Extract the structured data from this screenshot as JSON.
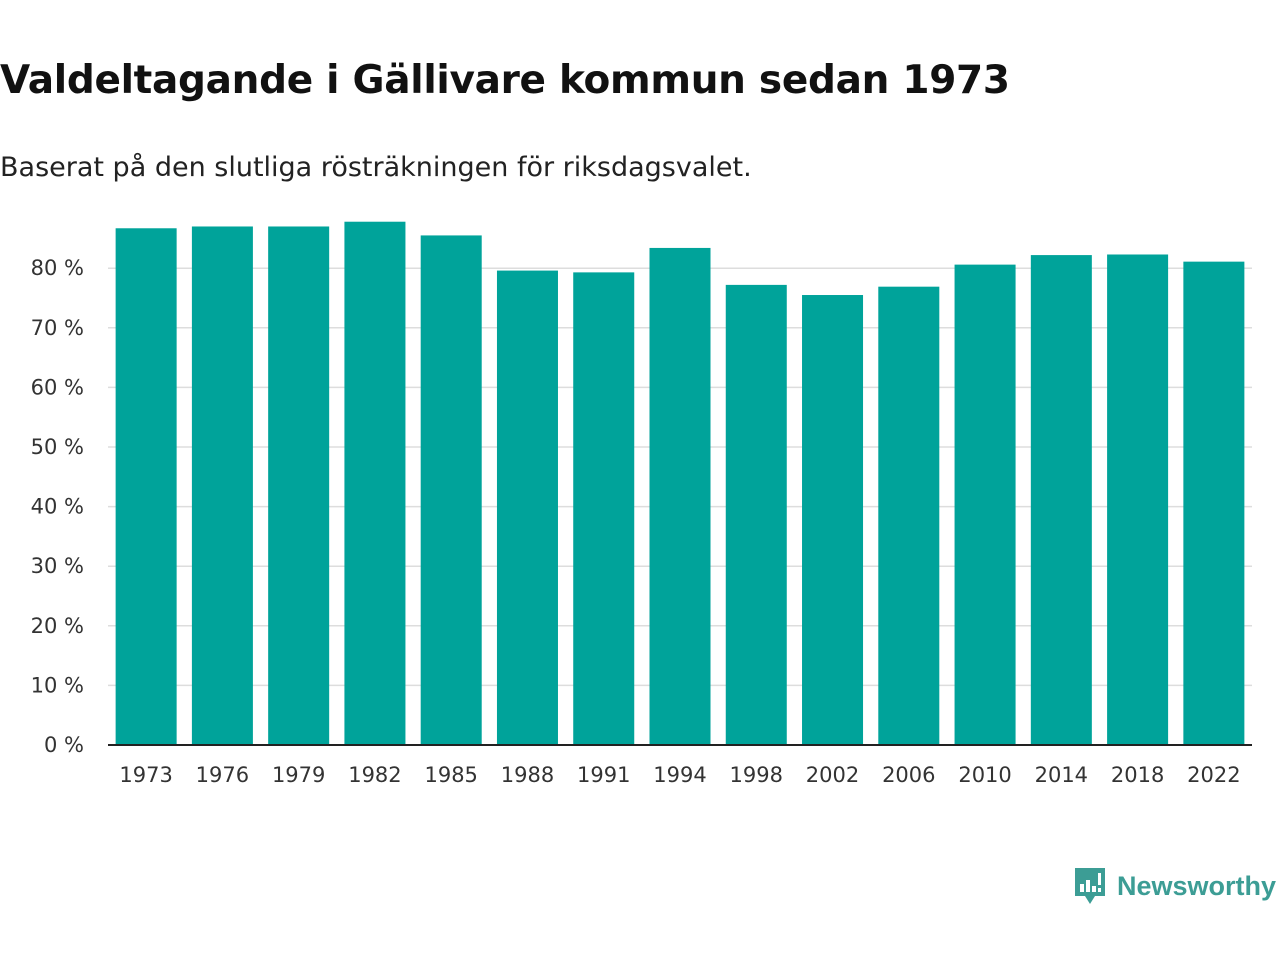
{
  "chart_data": {
    "type": "bar",
    "title": "Valdeltagande i Gällivare kommun sedan 1973",
    "subtitle": "Baserat på den slutliga rösträkningen för riksdagsvalet.",
    "xlabel": "",
    "ylabel": "",
    "categories": [
      "1973",
      "1976",
      "1979",
      "1982",
      "1985",
      "1988",
      "1991",
      "1994",
      "1998",
      "2002",
      "2006",
      "2010",
      "2014",
      "2018",
      "2022"
    ],
    "values": [
      86.7,
      87.0,
      87.0,
      87.8,
      85.5,
      79.6,
      79.3,
      83.4,
      77.2,
      75.5,
      76.9,
      80.6,
      82.2,
      82.3,
      81.1
    ],
    "ylim": [
      0,
      90
    ],
    "yticks": [
      0,
      10,
      20,
      30,
      40,
      50,
      60,
      70,
      80
    ],
    "ytick_labels": [
      "0 %",
      "10 %",
      "20 %",
      "30 %",
      "40 %",
      "50 %",
      "60 %",
      "70 %",
      "80 %"
    ],
    "grid": true,
    "bar_color": "#00a39a",
    "grid_color": "#dddddd",
    "axis_color": "#222222"
  },
  "brand": {
    "name": "Newsworthy",
    "icon": "newsworthy-logo-icon",
    "color": "#3c9d95"
  }
}
